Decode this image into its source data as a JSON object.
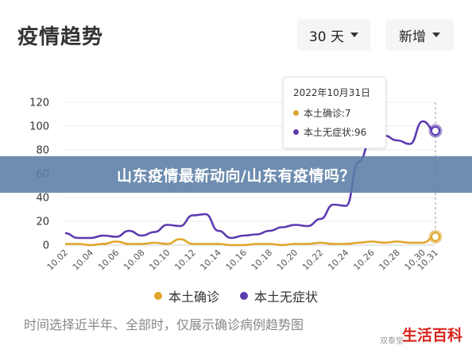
{
  "header": {
    "title": "疫情趋势",
    "range_dropdown": "30 天",
    "metric_dropdown": "新增"
  },
  "banner": "山东疫情最新动向/山东有疫情吗？",
  "tooltip": {
    "date": "2022年10月31日",
    "rows": [
      {
        "label": "本土确诊:7",
        "color": "#e0a52a"
      },
      {
        "label": "本土无症状:96",
        "color": "#5b3bb0"
      }
    ]
  },
  "legend": [
    {
      "label": "本土确诊",
      "color": "#e0a52a"
    },
    {
      "label": "本土无症状",
      "color": "#5b3bb0"
    }
  ],
  "footnote": "时间选择近半年、全部时，仅展示确诊病例趋势图",
  "watermark_small": "双泰堂",
  "watermark": "生活百科",
  "chart_data": {
    "type": "line",
    "ylim": [
      0,
      120
    ],
    "yticks": [
      0,
      20,
      40,
      60,
      80,
      100,
      120
    ],
    "xtick_labels": [
      "10.02",
      "10.04",
      "10.06",
      "10.08",
      "10.10",
      "10.12",
      "10.14",
      "10.16",
      "10.18",
      "10.20",
      "10.22",
      "10.24",
      "10.26",
      "10.28",
      "10.30",
      "10.31"
    ],
    "x": [
      "10.02",
      "10.03",
      "10.04",
      "10.05",
      "10.06",
      "10.07",
      "10.08",
      "10.09",
      "10.10",
      "10.11",
      "10.12",
      "10.13",
      "10.14",
      "10.15",
      "10.16",
      "10.17",
      "10.18",
      "10.19",
      "10.20",
      "10.21",
      "10.22",
      "10.23",
      "10.24",
      "10.25",
      "10.26",
      "10.27",
      "10.28",
      "10.29",
      "10.30",
      "10.31"
    ],
    "series": [
      {
        "name": "本土确诊",
        "color": "#e0a52a",
        "values": [
          1,
          1,
          0,
          1,
          3,
          1,
          1,
          2,
          1,
          5,
          1,
          1,
          1,
          0,
          0,
          1,
          1,
          0,
          1,
          1,
          2,
          1,
          1,
          2,
          3,
          2,
          3,
          2,
          2,
          7
        ]
      },
      {
        "name": "本土无症状",
        "color": "#5b3bb0",
        "values": [
          10,
          6,
          6,
          8,
          7,
          12,
          8,
          11,
          17,
          16,
          25,
          26,
          12,
          6,
          8,
          9,
          12,
          15,
          17,
          16,
          22,
          34,
          33,
          70,
          90,
          92,
          88,
          85,
          104,
          96
        ]
      }
    ]
  }
}
